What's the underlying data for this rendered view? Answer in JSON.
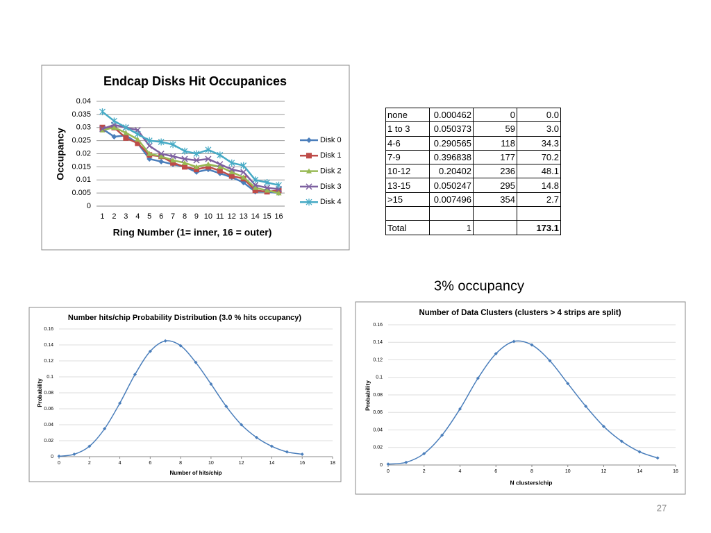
{
  "chart_data": [
    {
      "type": "line",
      "title": "Endcap Disks Hit Occupanices",
      "y_label": "Occupancy",
      "x_label": "Ring Number (1= inner, 16 = outer)",
      "categories": [
        "1",
        "2",
        "3",
        "4",
        "5",
        "6",
        "7",
        "8",
        "9",
        "10",
        "11",
        "12",
        "13",
        "14",
        "15",
        "16"
      ],
      "ylim": [
        0,
        0.04
      ],
      "yticks": [
        0,
        0.005,
        0.01,
        0.015,
        0.02,
        0.025,
        0.03,
        0.035,
        0.04
      ],
      "grid": true,
      "legend": "right",
      "smooth": false,
      "series": [
        {
          "name": "Disk 0",
          "color": "#4a7ebb",
          "marker": "diamond",
          "values": [
            0.0295,
            0.0265,
            0.027,
            0.024,
            0.018,
            0.017,
            0.016,
            0.015,
            0.013,
            0.014,
            0.0125,
            0.011,
            0.009,
            0.0055,
            0.0055,
            0.005
          ]
        },
        {
          "name": "Disk 1",
          "color": "#be4b48",
          "marker": "square",
          "values": [
            0.03,
            0.03,
            0.026,
            0.024,
            0.0195,
            0.019,
            0.0165,
            0.015,
            0.014,
            0.015,
            0.0135,
            0.0115,
            0.0105,
            0.006,
            0.0055,
            0.006
          ]
        },
        {
          "name": "Disk 2",
          "color": "#98b954",
          "marker": "triangle",
          "values": [
            0.029,
            0.03,
            0.028,
            0.0255,
            0.02,
            0.019,
            0.0175,
            0.0165,
            0.015,
            0.016,
            0.015,
            0.013,
            0.011,
            0.007,
            0.006,
            0.005
          ]
        },
        {
          "name": "Disk 3",
          "color": "#7d60a0",
          "marker": "x",
          "values": [
            0.0295,
            0.031,
            0.03,
            0.029,
            0.023,
            0.02,
            0.019,
            0.018,
            0.0175,
            0.018,
            0.016,
            0.014,
            0.013,
            0.008,
            0.007,
            0.0065
          ]
        },
        {
          "name": "Disk 4",
          "color": "#46aac5",
          "marker": "star",
          "values": [
            0.036,
            0.0325,
            0.03,
            0.0275,
            0.025,
            0.0245,
            0.0235,
            0.021,
            0.02,
            0.0215,
            0.0195,
            0.0165,
            0.0155,
            0.01,
            0.009,
            0.008
          ]
        }
      ]
    },
    {
      "type": "line",
      "title": "Number hits/chip Probability Distribution (3.0 % hits occupancy)",
      "y_label": "Probability",
      "x_label": "Number of hits/chip",
      "x": [
        0,
        1,
        2,
        3,
        4,
        5,
        6,
        7,
        8,
        9,
        10,
        11,
        12,
        13,
        14,
        15,
        16
      ],
      "xlim": [
        0,
        18
      ],
      "xticks": [
        0,
        2,
        4,
        6,
        8,
        10,
        12,
        14,
        16,
        18
      ],
      "ylim": [
        0,
        0.16
      ],
      "yticks": [
        0,
        0.02,
        0.04,
        0.06,
        0.08,
        0.1,
        0.12,
        0.14,
        0.16
      ],
      "grid": true,
      "smooth": true,
      "series": [
        {
          "color": "#4a7ebb",
          "marker": "diamond",
          "values": [
            0.0005,
            0.003,
            0.013,
            0.035,
            0.067,
            0.103,
            0.132,
            0.145,
            0.139,
            0.118,
            0.091,
            0.063,
            0.04,
            0.024,
            0.013,
            0.006,
            0.003
          ]
        }
      ]
    },
    {
      "type": "line",
      "title": "Number of Data Clusters (clusters > 4 strips are split)",
      "y_label": "Probability",
      "x_label": "N clusters/chip",
      "x": [
        0,
        1,
        2,
        3,
        4,
        5,
        6,
        7,
        8,
        9,
        10,
        11,
        12,
        13,
        14,
        15
      ],
      "xlim": [
        0,
        16
      ],
      "xticks": [
        0,
        2,
        4,
        6,
        8,
        10,
        12,
        14,
        16
      ],
      "ylim": [
        0,
        0.16
      ],
      "yticks": [
        0,
        0.02,
        0.04,
        0.06,
        0.08,
        0.1,
        0.12,
        0.14,
        0.16
      ],
      "grid": true,
      "smooth": true,
      "series": [
        {
          "color": "#4a7ebb",
          "marker": "diamond",
          "values": [
            0.001,
            0.003,
            0.013,
            0.034,
            0.064,
            0.099,
            0.127,
            0.141,
            0.137,
            0.119,
            0.093,
            0.067,
            0.044,
            0.027,
            0.015,
            0.008
          ]
        }
      ]
    }
  ],
  "table": {
    "rows": [
      [
        "none",
        "0.000462",
        "0",
        "0.0"
      ],
      [
        "1 to 3",
        "0.050373",
        "59",
        "3.0"
      ],
      [
        "4-6",
        "0.290565",
        "118",
        "34.3"
      ],
      [
        "7-9",
        "0.396838",
        "177",
        "70.2"
      ],
      [
        "10-12",
        "0.20402",
        "236",
        "48.1"
      ],
      [
        "13-15",
        "0.050247",
        "295",
        "14.8"
      ],
      [
        ">15",
        "0.007496",
        "354",
        "2.7"
      ],
      [
        null,
        null,
        null,
        null
      ],
      [
        "Total",
        "1",
        null,
        "173.1"
      ]
    ]
  },
  "caption": "3% occupancy",
  "page_number": "27"
}
